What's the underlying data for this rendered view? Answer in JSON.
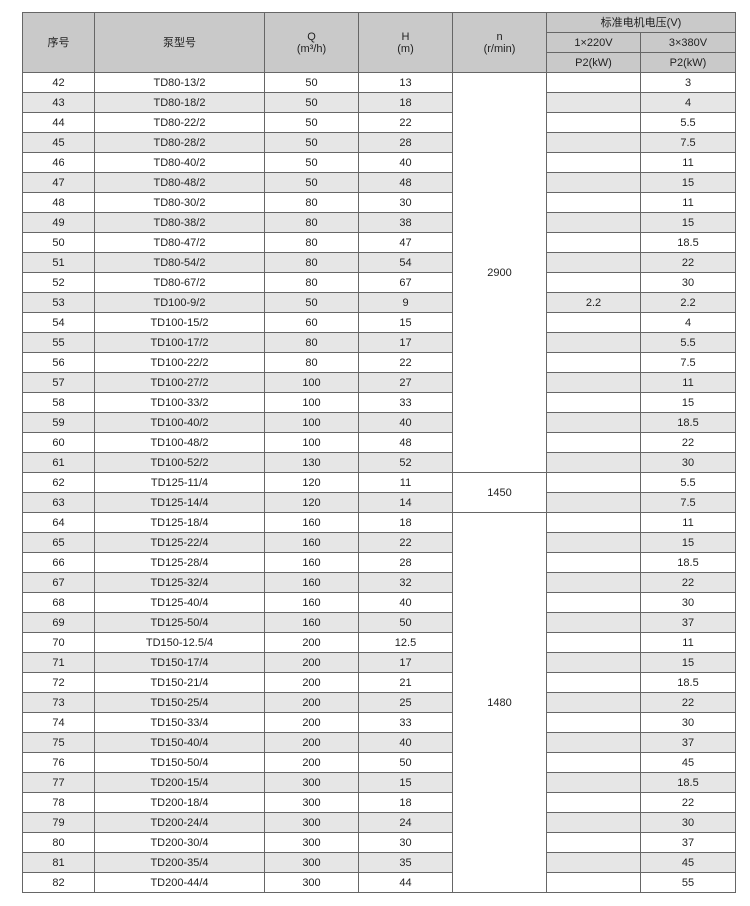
{
  "header": {
    "no": "序号",
    "model": "泵型号",
    "q": "Q",
    "q_unit": "(m³/h)",
    "h": "H",
    "h_unit": "(m)",
    "n": "n",
    "n_unit": "(r/min)",
    "voltage": "标准电机电压(V)",
    "v1": "1×220V",
    "v3": "3×380V",
    "p1": "P2(kW)",
    "p3": "P2(kW)"
  },
  "speed_groups": [
    {
      "value": "2900",
      "rows": 20
    },
    {
      "value": "1450",
      "rows": 2
    },
    {
      "value": "1480",
      "rows": 19
    }
  ],
  "rows": [
    [
      "42",
      "TD80-13/2",
      "50",
      "13",
      "",
      "3"
    ],
    [
      "43",
      "TD80-18/2",
      "50",
      "18",
      "",
      "4"
    ],
    [
      "44",
      "TD80-22/2",
      "50",
      "22",
      "",
      "5.5"
    ],
    [
      "45",
      "TD80-28/2",
      "50",
      "28",
      "",
      "7.5"
    ],
    [
      "46",
      "TD80-40/2",
      "50",
      "40",
      "",
      "11"
    ],
    [
      "47",
      "TD80-48/2",
      "50",
      "48",
      "",
      "15"
    ],
    [
      "48",
      "TD80-30/2",
      "80",
      "30",
      "",
      "11"
    ],
    [
      "49",
      "TD80-38/2",
      "80",
      "38",
      "",
      "15"
    ],
    [
      "50",
      "TD80-47/2",
      "80",
      "47",
      "",
      "18.5"
    ],
    [
      "51",
      "TD80-54/2",
      "80",
      "54",
      "",
      "22"
    ],
    [
      "52",
      "TD80-67/2",
      "80",
      "67",
      "",
      "30"
    ],
    [
      "53",
      "TD100-9/2",
      "50",
      "9",
      "2.2",
      "2.2"
    ],
    [
      "54",
      "TD100-15/2",
      "60",
      "15",
      "",
      "4"
    ],
    [
      "55",
      "TD100-17/2",
      "80",
      "17",
      "",
      "5.5"
    ],
    [
      "56",
      "TD100-22/2",
      "80",
      "22",
      "",
      "7.5"
    ],
    [
      "57",
      "TD100-27/2",
      "100",
      "27",
      "",
      "11"
    ],
    [
      "58",
      "TD100-33/2",
      "100",
      "33",
      "",
      "15"
    ],
    [
      "59",
      "TD100-40/2",
      "100",
      "40",
      "",
      "18.5"
    ],
    [
      "60",
      "TD100-48/2",
      "100",
      "48",
      "",
      "22"
    ],
    [
      "61",
      "TD100-52/2",
      "130",
      "52",
      "",
      "30"
    ],
    [
      "62",
      "TD125-11/4",
      "120",
      "11",
      "",
      "5.5"
    ],
    [
      "63",
      "TD125-14/4",
      "120",
      "14",
      "",
      "7.5"
    ],
    [
      "64",
      "TD125-18/4",
      "160",
      "18",
      "",
      "11"
    ],
    [
      "65",
      "TD125-22/4",
      "160",
      "22",
      "",
      "15"
    ],
    [
      "66",
      "TD125-28/4",
      "160",
      "28",
      "",
      "18.5"
    ],
    [
      "67",
      "TD125-32/4",
      "160",
      "32",
      "",
      "22"
    ],
    [
      "68",
      "TD125-40/4",
      "160",
      "40",
      "",
      "30"
    ],
    [
      "69",
      "TD125-50/4",
      "160",
      "50",
      "",
      "37"
    ],
    [
      "70",
      "TD150-12.5/4",
      "200",
      "12.5",
      "",
      "11"
    ],
    [
      "71",
      "TD150-17/4",
      "200",
      "17",
      "",
      "15"
    ],
    [
      "72",
      "TD150-21/4",
      "200",
      "21",
      "",
      "18.5"
    ],
    [
      "73",
      "TD150-25/4",
      "200",
      "25",
      "",
      "22"
    ],
    [
      "74",
      "TD150-33/4",
      "200",
      "33",
      "",
      "30"
    ],
    [
      "75",
      "TD150-40/4",
      "200",
      "40",
      "",
      "37"
    ],
    [
      "76",
      "TD150-50/4",
      "200",
      "50",
      "",
      "45"
    ],
    [
      "77",
      "TD200-15/4",
      "300",
      "15",
      "",
      "18.5"
    ],
    [
      "78",
      "TD200-18/4",
      "300",
      "18",
      "",
      "22"
    ],
    [
      "79",
      "TD200-24/4",
      "300",
      "24",
      "",
      "30"
    ],
    [
      "80",
      "TD200-30/4",
      "300",
      "30",
      "",
      "37"
    ],
    [
      "81",
      "TD200-35/4",
      "300",
      "35",
      "",
      "45"
    ],
    [
      "82",
      "TD200-44/4",
      "300",
      "44",
      "",
      "55"
    ]
  ]
}
